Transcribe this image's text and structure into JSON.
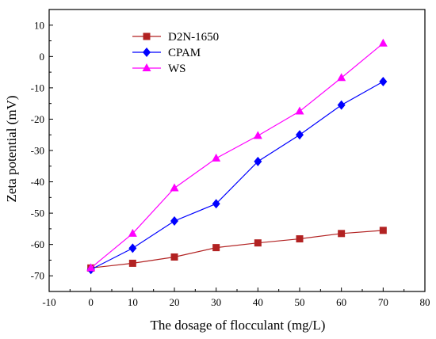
{
  "chart_data": {
    "type": "line",
    "xlabel": "The dosage of flocculant (mg/L)",
    "ylabel": "Zeta potential (mV)",
    "xlim": [
      -10,
      80
    ],
    "ylim": [
      -75,
      15
    ],
    "x_ticks": [
      -10,
      0,
      10,
      20,
      30,
      40,
      50,
      60,
      70,
      80
    ],
    "y_ticks": [
      -70,
      -60,
      -50,
      -40,
      -30,
      -20,
      -10,
      0,
      10
    ],
    "grid": false,
    "legend_position": "top-left",
    "series": [
      {
        "name": "D2N-1650",
        "color": "#b22222",
        "marker": "square",
        "x": [
          0,
          10,
          20,
          30,
          40,
          50,
          60,
          70
        ],
        "y": [
          -67.5,
          -66,
          -64,
          -61,
          -59.5,
          -58.2,
          -56.5,
          -55.5
        ]
      },
      {
        "name": "CPAM",
        "color": "#0000ff",
        "marker": "diamond",
        "x": [
          0,
          10,
          20,
          30,
          40,
          50,
          60,
          70
        ],
        "y": [
          -68,
          -61.2,
          -52.5,
          -47,
          -33.5,
          -25,
          -15.5,
          -8
        ]
      },
      {
        "name": "WS",
        "color": "#ff00ff",
        "marker": "triangle",
        "x": [
          0,
          10,
          20,
          30,
          40,
          50,
          60,
          70
        ],
        "y": [
          -67.5,
          -56.5,
          -42,
          -32.5,
          -25.3,
          -17.5,
          -6.8,
          4.2
        ]
      }
    ]
  }
}
